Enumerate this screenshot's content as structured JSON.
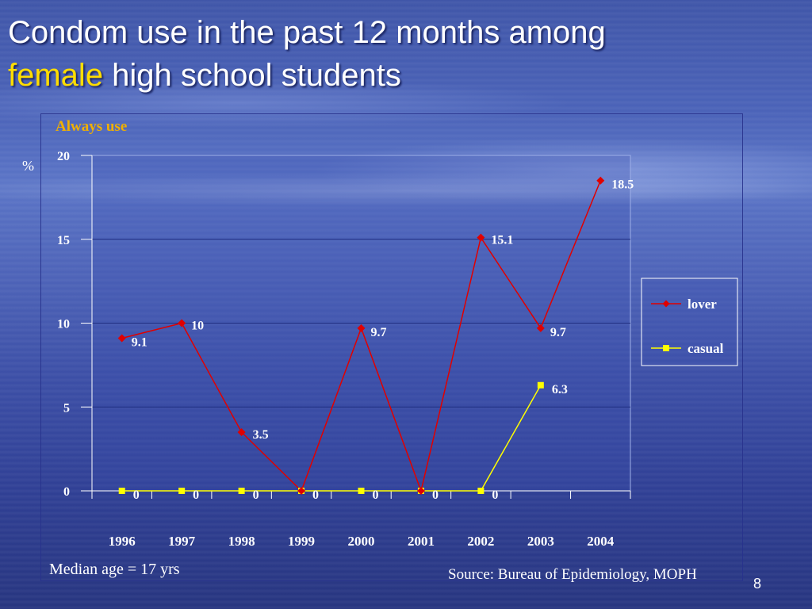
{
  "slide": {
    "title_line1": "Condom use in the past 12 months among",
    "title_highlight": "female",
    "title_rest": " high school students",
    "median_age": "Median age = 17 yrs",
    "source": "Source: Bureau of Epidemiology, MOPH",
    "page_number": "8"
  },
  "chart_data": {
    "type": "line",
    "title": "Always use",
    "ylabel": "%",
    "ylim": [
      0,
      20
    ],
    "yticks": [
      0,
      5,
      10,
      15,
      20
    ],
    "categories": [
      "1996",
      "1997",
      "1998",
      "1999",
      "2000",
      "2001",
      "2002",
      "2003",
      "2004"
    ],
    "series": [
      {
        "name": "lover",
        "color": "#e00000",
        "marker": "diamond",
        "values": [
          9.1,
          10,
          3.5,
          0,
          9.7,
          0,
          15.1,
          9.7,
          18.5
        ],
        "labels": [
          "9.1",
          "10",
          "3.5",
          "0",
          "9.7",
          "0",
          "15.1",
          "9.7",
          "18.5"
        ]
      },
      {
        "name": "casual",
        "color": "#ffff00",
        "marker": "square",
        "values": [
          0,
          0,
          0,
          0,
          0,
          0,
          0,
          6.3,
          null
        ],
        "labels": [
          "0",
          "0",
          "0",
          "0",
          "0",
          "0",
          "0",
          "6.3",
          ""
        ]
      }
    ],
    "legend_position": "right"
  }
}
